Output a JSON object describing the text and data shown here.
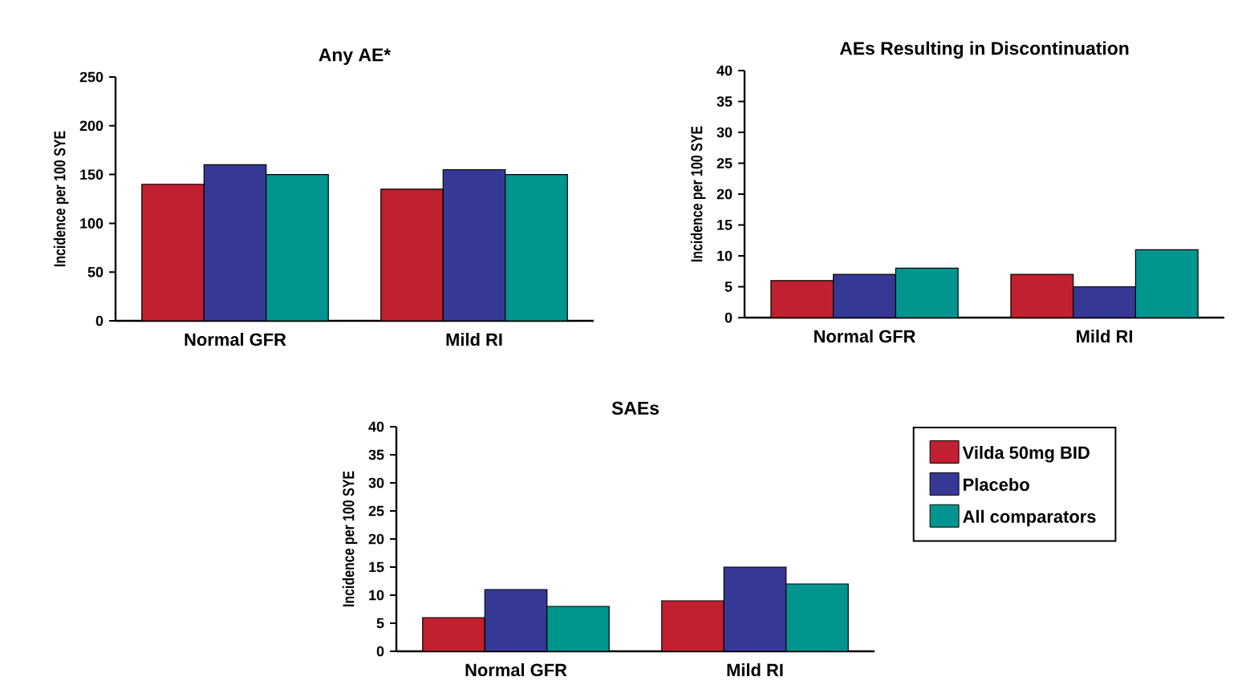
{
  "chart_data": [
    {
      "type": "bar",
      "title": "Any AE*",
      "ylabel": "Incidence per 100 SYE",
      "categories": [
        "Normal GFR",
        "Mild RI"
      ],
      "ylim": [
        0,
        250
      ],
      "yticks": [
        0,
        50,
        100,
        150,
        200,
        250
      ],
      "series": [
        {
          "color": "#c0202f",
          "values": [
            140,
            135
          ]
        },
        {
          "color": "#363896",
          "values": [
            160,
            155
          ]
        },
        {
          "color": "#00968f",
          "values": [
            150,
            150
          ]
        }
      ]
    },
    {
      "type": "bar",
      "title": "AEs Resulting in Discontinuation",
      "ylabel": "Incidence per 100 SYE",
      "categories": [
        "Normal GFR",
        "Mild RI"
      ],
      "ylim": [
        0,
        40
      ],
      "yticks": [
        0,
        5,
        10,
        15,
        20,
        25,
        30,
        35,
        40
      ],
      "series": [
        {
          "color": "#c0202f",
          "values": [
            6,
            7
          ]
        },
        {
          "color": "#363896",
          "values": [
            7,
            5
          ]
        },
        {
          "color": "#00968f",
          "values": [
            8,
            11
          ]
        }
      ]
    },
    {
      "type": "bar",
      "title": "SAEs",
      "ylabel": "Incidence per 100 SYE",
      "categories": [
        "Normal GFR",
        "Mild RI"
      ],
      "ylim": [
        0,
        40
      ],
      "yticks": [
        0,
        5,
        10,
        15,
        20,
        25,
        30,
        35,
        40
      ],
      "legend": "right",
      "series": [
        {
          "name": "Vilda 50mg BID",
          "color": "#c0202f",
          "values": [
            6,
            9
          ]
        },
        {
          "name": "Placebo",
          "color": "#363896",
          "values": [
            11,
            15
          ]
        },
        {
          "name": "All comparators",
          "color": "#00968f",
          "values": [
            8,
            12
          ]
        }
      ]
    }
  ]
}
